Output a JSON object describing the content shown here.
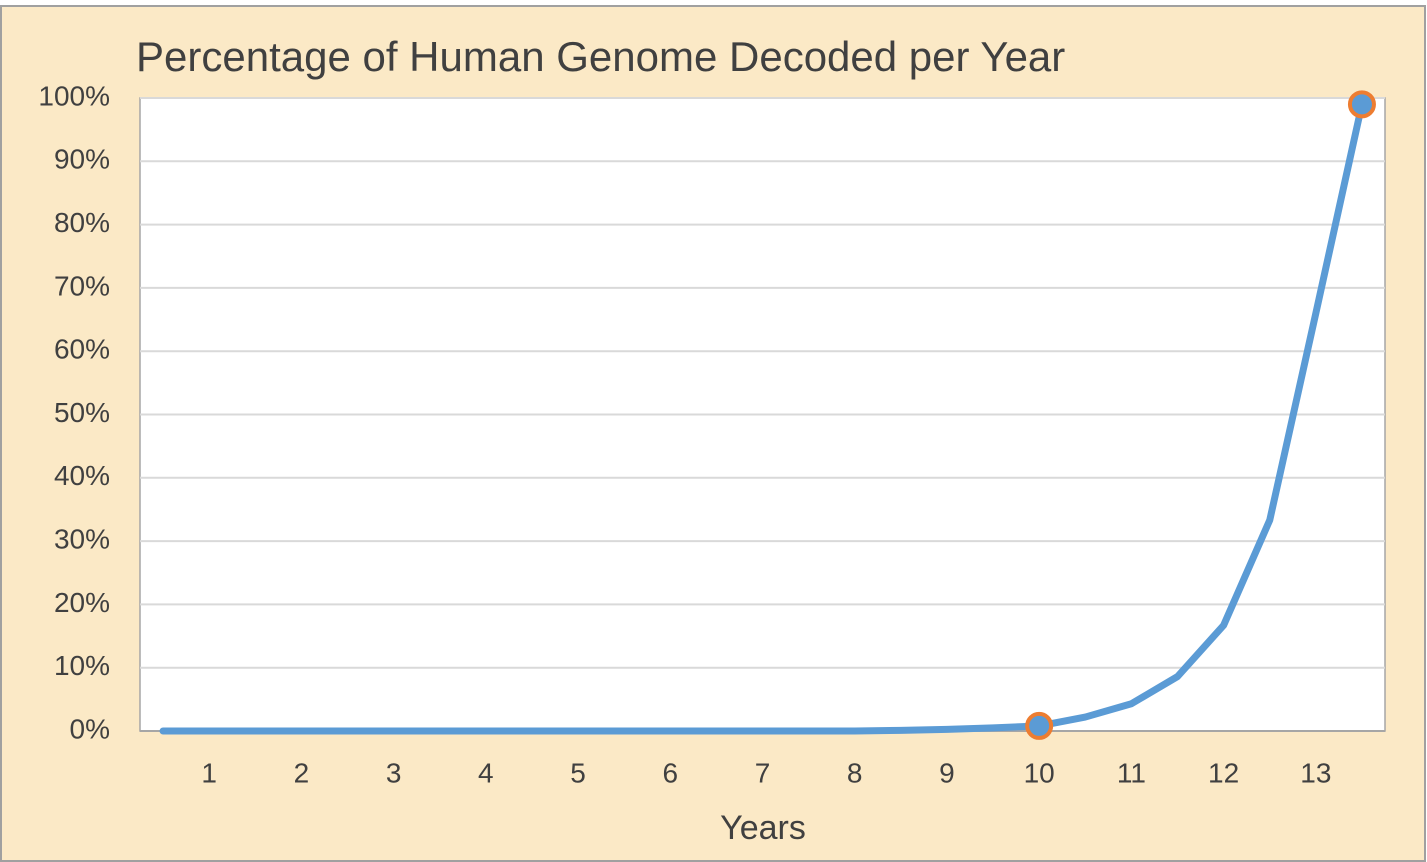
{
  "chart_data": {
    "type": "line",
    "title": "Percentage of Human Genome Decoded per Year",
    "x_label": "Years",
    "x": [
      0.5,
      1,
      1.5,
      2,
      2.5,
      3,
      3.5,
      4,
      4.5,
      5,
      5.5,
      6,
      6.5,
      7,
      7.5,
      8,
      8.5,
      9,
      9.5,
      10,
      10.5,
      11,
      11.5,
      12,
      12.5,
      13,
      13.5
    ],
    "series": [
      {
        "color": "#5b9bd5",
        "values": [
          0,
          0,
          0,
          0,
          0,
          0,
          0,
          0,
          0,
          0,
          0,
          0,
          0,
          0,
          0,
          0,
          0.1,
          0.25,
          0.5,
          0.8,
          2.2,
          4.3,
          8.6,
          16.7,
          33.3,
          66,
          99
        ],
        "highlight_points": [
          19,
          26
        ],
        "highlight_color": "#ed7d31"
      }
    ],
    "xlim": [
      0.25,
      13.75
    ],
    "xticks": [
      1,
      2,
      3,
      4,
      5,
      6,
      7,
      8,
      9,
      10,
      11,
      12,
      13
    ],
    "ylim": [
      0,
      100
    ],
    "yticks": [
      {
        "value": 0,
        "label": "0%"
      },
      {
        "value": 10,
        "label": "10%"
      },
      {
        "value": 20,
        "label": "20%"
      },
      {
        "value": 30,
        "label": "30%"
      },
      {
        "value": 40,
        "label": "40%"
      },
      {
        "value": 50,
        "label": "50%"
      },
      {
        "value": 60,
        "label": "60%"
      },
      {
        "value": 70,
        "label": "70%"
      },
      {
        "value": 80,
        "label": "80%"
      },
      {
        "value": 90,
        "label": "90%"
      },
      {
        "value": 100,
        "label": "100%"
      }
    ],
    "grid": true
  }
}
